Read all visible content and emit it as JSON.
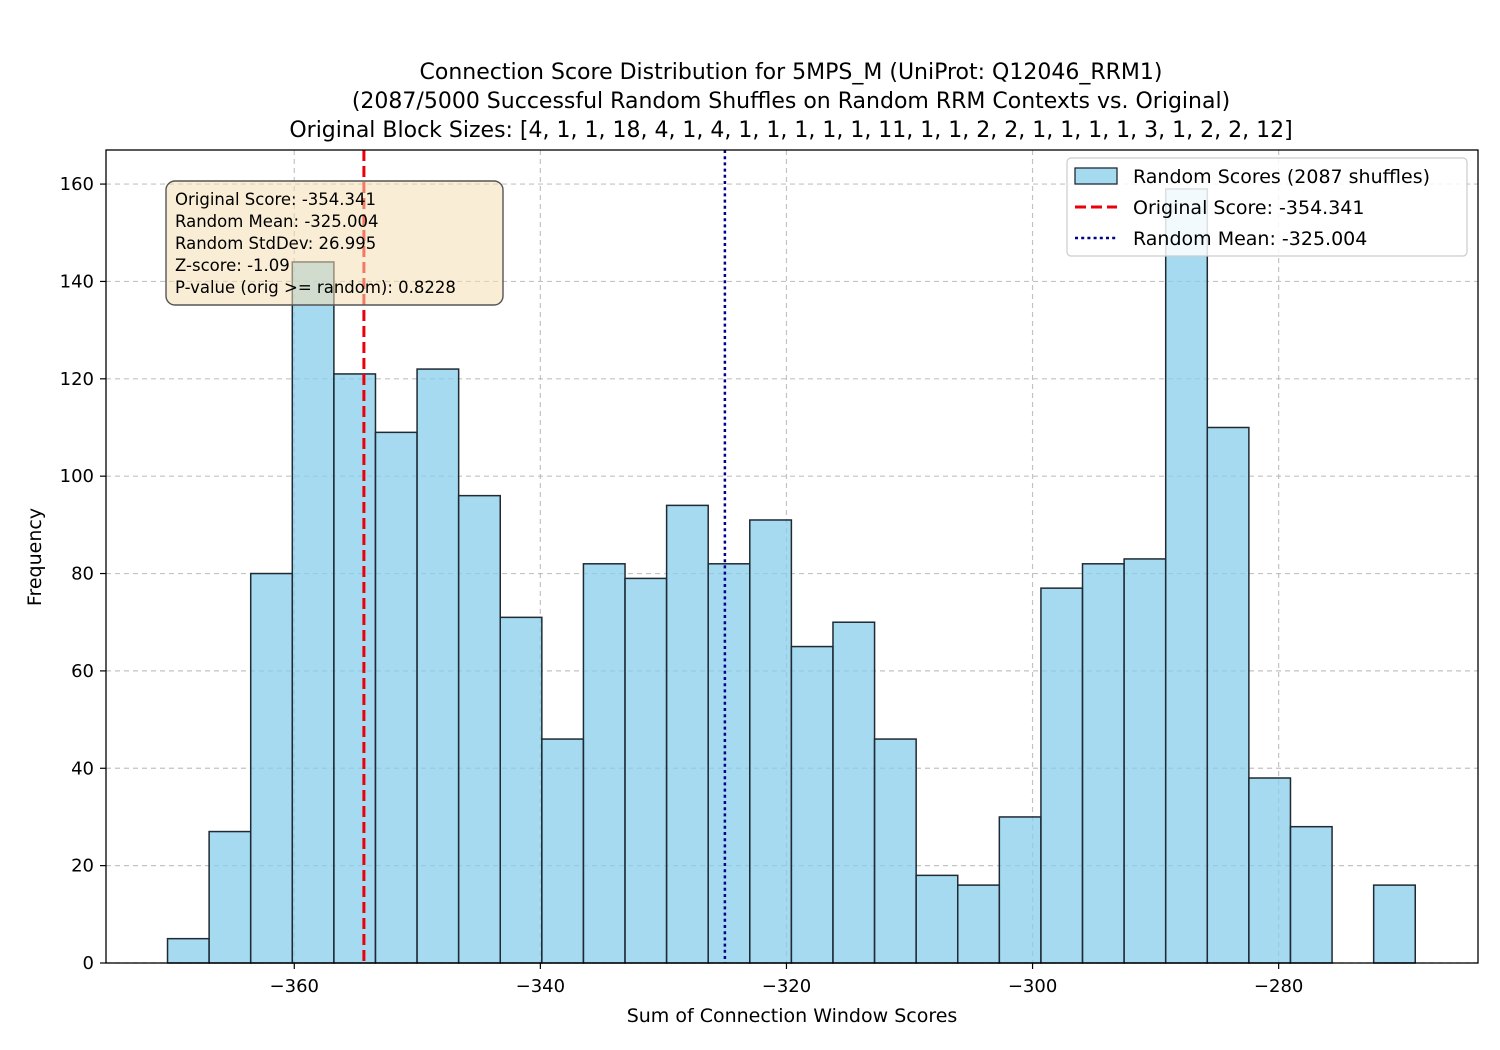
{
  "chart_data": {
    "type": "bar",
    "title_lines": [
      "Connection Score Distribution for 5MPS_M (UniProt: Q12046_RRM1)",
      "(2087/5000 Successful Random Shuffles on Random RRM Contexts vs. Original)",
      "Original Block Sizes: [4, 1, 1, 18, 4, 1, 4, 1, 1, 1, 1, 1, 11, 1, 1, 2, 2, 1, 1, 1, 1, 3, 1, 2, 2, 12]"
    ],
    "xlabel": "Sum of Connection Window Scores",
    "ylabel": "Frequency",
    "xlim": [
      -375.3,
      -263.8
    ],
    "ylim": [
      0,
      167
    ],
    "xticks": [
      -360,
      -340,
      -320,
      -300,
      -280
    ],
    "xtick_labels": [
      "−360",
      "−340",
      "−320",
      "−300",
      "−280"
    ],
    "yticks": [
      0,
      20,
      40,
      60,
      80,
      100,
      120,
      140,
      160
    ],
    "bin_edges": [
      -370.3,
      -366.92,
      -363.54,
      -360.16,
      -356.78,
      -353.4,
      -350.02,
      -346.64,
      -343.26,
      -339.88,
      -336.5,
      -333.12,
      -329.74,
      -326.36,
      -322.98,
      -319.6,
      -316.22,
      -312.84,
      -309.46,
      -306.08,
      -302.7,
      -299.32,
      -295.94,
      -292.56,
      -289.18,
      -285.8,
      -282.42,
      -279.04,
      -275.66,
      -272.28,
      -268.9
    ],
    "values": [
      5,
      27,
      80,
      144,
      121,
      109,
      122,
      96,
      71,
      46,
      82,
      79,
      94,
      82,
      91,
      65,
      70,
      46,
      18,
      16,
      30,
      77,
      82,
      83,
      159,
      110,
      38,
      28,
      0,
      16
    ],
    "bar_color": "#87ceeb",
    "bar_edge_color": "#1f2a33",
    "grid": true,
    "vlines": [
      {
        "name": "Original Score: -354.341",
        "x": -354.341,
        "color": "#e8000b",
        "style": "dashed"
      },
      {
        "name": "Random Mean: -325.004",
        "x": -325.004,
        "color": "#00008b",
        "style": "dotted"
      }
    ],
    "legend": {
      "placement": "top-right",
      "entries": [
        {
          "label": "Random Scores (2087 shuffles)",
          "kind": "patch",
          "color": "#87ceeb"
        },
        {
          "label": "Original Score: -354.341",
          "kind": "dashed",
          "color": "#e8000b"
        },
        {
          "label": "Random Mean: -325.004",
          "kind": "dotted",
          "color": "#00008b"
        }
      ]
    },
    "stats_box": {
      "placement": "top-left",
      "color": "#f5deb3",
      "lines": [
        "Original Score: -354.341",
        "Random Mean: -325.004",
        "Random StdDev: 26.995",
        "Z-score: -1.09",
        "P-value (orig >= random): 0.8228"
      ]
    }
  }
}
